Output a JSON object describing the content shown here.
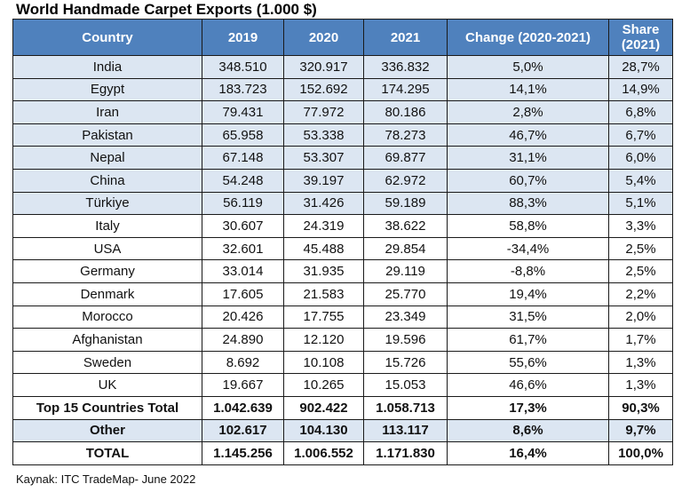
{
  "title": "World Handmade Carpet Exports (1.000 $)",
  "source": "Kaynak: ITC TradeMap- June 2022",
  "columns": [
    "Country",
    "2019",
    "2020",
    "2021",
    "Change (2020-2021)",
    "Share\n(2021)"
  ],
  "column_header_lines": {
    "share_line1": "Share",
    "share_line2": "(2021)"
  },
  "rows": [
    {
      "country": "India",
      "y2019": "348.510",
      "y2020": "320.917",
      "y2021": "336.832",
      "change": "5,0%",
      "share": "28,7%"
    },
    {
      "country": "Egypt",
      "y2019": "183.723",
      "y2020": "152.692",
      "y2021": "174.295",
      "change": "14,1%",
      "share": "14,9%"
    },
    {
      "country": "Iran",
      "y2019": "79.431",
      "y2020": "77.972",
      "y2021": "80.186",
      "change": "2,8%",
      "share": "6,8%"
    },
    {
      "country": "Pakistan",
      "y2019": "65.958",
      "y2020": "53.338",
      "y2021": "78.273",
      "change": "46,7%",
      "share": "6,7%"
    },
    {
      "country": "Nepal",
      "y2019": "67.148",
      "y2020": "53.307",
      "y2021": "69.877",
      "change": "31,1%",
      "share": "6,0%"
    },
    {
      "country": "China",
      "y2019": "54.248",
      "y2020": "39.197",
      "y2021": "62.972",
      "change": "60,7%",
      "share": "5,4%"
    },
    {
      "country": "Türkiye",
      "y2019": "56.119",
      "y2020": "31.426",
      "y2021": "59.189",
      "change": "88,3%",
      "share": "5,1%"
    },
    {
      "country": "Italy",
      "y2019": "30.607",
      "y2020": "24.319",
      "y2021": "38.622",
      "change": "58,8%",
      "share": "3,3%"
    },
    {
      "country": "USA",
      "y2019": "32.601",
      "y2020": "45.488",
      "y2021": "29.854",
      "change": "-34,4%",
      "share": "2,5%"
    },
    {
      "country": "Germany",
      "y2019": "33.014",
      "y2020": "31.935",
      "y2021": "29.119",
      "change": "-8,8%",
      "share": "2,5%"
    },
    {
      "country": "Denmark",
      "y2019": "17.605",
      "y2020": "21.583",
      "y2021": "25.770",
      "change": "19,4%",
      "share": "2,2%"
    },
    {
      "country": "Morocco",
      "y2019": "20.426",
      "y2020": "17.755",
      "y2021": "23.349",
      "change": "31,5%",
      "share": "2,0%"
    },
    {
      "country": "Afghanistan",
      "y2019": "24.890",
      "y2020": "12.120",
      "y2021": "19.596",
      "change": "61,7%",
      "share": "1,7%"
    },
    {
      "country": "Sweden",
      "y2019": "8.692",
      "y2020": "10.108",
      "y2021": "15.726",
      "change": "55,6%",
      "share": "1,3%"
    },
    {
      "country": "UK",
      "y2019": "19.667",
      "y2020": "10.265",
      "y2021": "15.053",
      "change": "46,6%",
      "share": "1,3%"
    }
  ],
  "totals": [
    {
      "country": "Top 15 Countries Total",
      "y2019": "1.042.639",
      "y2020": "902.422",
      "y2021": "1.058.713",
      "change": "17,3%",
      "share": "90,3%"
    },
    {
      "country": "Other",
      "y2019": "102.617",
      "y2020": "104.130",
      "y2021": "113.117",
      "change": "8,6%",
      "share": "9,7%"
    },
    {
      "country": "TOTAL",
      "y2019": "1.145.256",
      "y2020": "1.006.552",
      "y2021": "1.171.830",
      "change": "16,4%",
      "share": "100,0%"
    }
  ],
  "colors": {
    "header_bg": "#4f81bd",
    "header_text": "#ffffff",
    "highlight_row": "#dce6f2"
  }
}
